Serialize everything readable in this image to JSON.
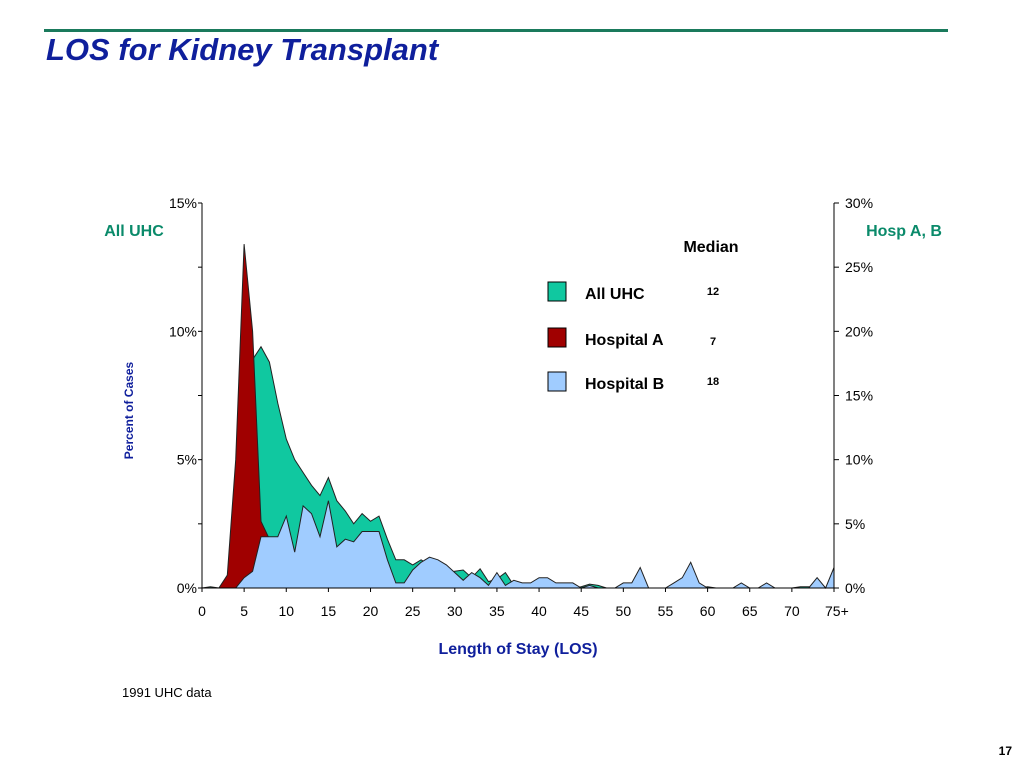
{
  "slide": {
    "title": "LOS for Kidney Transplant",
    "footnote": "1991 UHC data",
    "page_number": "17"
  },
  "colors": {
    "title": "#0f1f9c",
    "rule": "#1a7a5c",
    "axis_label_green": "#0a8a6a",
    "axis_label_blue": "#0f1f9c",
    "all_uhc": "#10c8a0",
    "hospital_a": "#a00000",
    "hospital_b": "#a0ccff"
  },
  "chart_data": {
    "type": "area",
    "title": "",
    "xlabel": "Length of Stay (LOS)",
    "ylabel": "Percent of Cases",
    "left_axis_title": "All UHC",
    "right_axis_title": "Hosp A, B",
    "xlim": [
      0,
      75
    ],
    "ylim_left": [
      0,
      15
    ],
    "ylim_right": [
      0,
      30
    ],
    "x_tick_labels": [
      "0",
      "5",
      "10",
      "15",
      "20",
      "25",
      "30",
      "35",
      "40",
      "45",
      "50",
      "55",
      "60",
      "65",
      "70",
      "75+"
    ],
    "y_left_tick_labels": [
      "0%",
      "5%",
      "10%",
      "15%"
    ],
    "y_right_tick_labels": [
      "0%",
      "5%",
      "10%",
      "15%",
      "20%",
      "25%",
      "30%"
    ],
    "legend": {
      "header": "Median",
      "placement": "top-right",
      "entries": [
        {
          "name": "All UHC",
          "median": "12",
          "color_key": "all_uhc"
        },
        {
          "name": "Hospital A",
          "median": "7",
          "color_key": "hospital_a"
        },
        {
          "name": "Hospital B",
          "median": "18",
          "color_key": "hospital_b"
        }
      ]
    },
    "series": [
      {
        "name": "All UHC",
        "axis": "left",
        "x": [
          0,
          1,
          2,
          3,
          4,
          5,
          6,
          7,
          8,
          9,
          10,
          11,
          12,
          13,
          14,
          15,
          16,
          17,
          18,
          19,
          20,
          21,
          22,
          23,
          24,
          25,
          26,
          27,
          28,
          29,
          30,
          31,
          32,
          33,
          34,
          35,
          36,
          37,
          38,
          39,
          40,
          41,
          42,
          43,
          44,
          45,
          46,
          47,
          48,
          49,
          50,
          51,
          52,
          53,
          54,
          55,
          56,
          57,
          58,
          59,
          60,
          61,
          62,
          63,
          64,
          65,
          66,
          67,
          68,
          69,
          70,
          71,
          72,
          73,
          74,
          75
        ],
        "values": [
          0,
          0.05,
          0,
          0.1,
          2.0,
          6.0,
          8.9,
          9.4,
          8.8,
          7.2,
          5.8,
          5.0,
          4.5,
          4.0,
          3.6,
          4.3,
          3.4,
          3.0,
          2.5,
          2.9,
          2.6,
          2.8,
          1.9,
          1.1,
          1.1,
          0.9,
          1.1,
          0.9,
          0.8,
          0.6,
          0.65,
          0.7,
          0.4,
          0.75,
          0.25,
          0.35,
          0.6,
          0.1,
          0,
          0,
          0.05,
          0.05,
          0.05,
          0,
          0,
          0.05,
          0.15,
          0.1,
          0,
          0,
          0,
          0,
          0,
          0,
          0,
          0,
          0,
          0,
          0,
          0,
          0.05,
          0,
          0,
          0,
          0,
          0,
          0,
          0.05,
          0,
          0,
          0,
          0.05,
          0.05,
          0,
          0,
          0
        ]
      },
      {
        "name": "Hospital A",
        "axis": "right",
        "x": [
          0,
          1,
          2,
          3,
          4,
          5,
          6,
          7,
          8,
          9,
          10
        ],
        "values": [
          0,
          0,
          0,
          1.0,
          10.0,
          26.8,
          20.0,
          5.2,
          3.8,
          0,
          0
        ]
      },
      {
        "name": "Hospital B",
        "axis": "right",
        "x": [
          0,
          1,
          2,
          3,
          4,
          5,
          6,
          7,
          8,
          9,
          10,
          11,
          12,
          13,
          14,
          15,
          16,
          17,
          18,
          19,
          20,
          21,
          22,
          23,
          24,
          25,
          26,
          27,
          28,
          29,
          30,
          31,
          32,
          33,
          34,
          35,
          36,
          37,
          38,
          39,
          40,
          41,
          42,
          43,
          44,
          45,
          46,
          47,
          48,
          49,
          50,
          51,
          52,
          53,
          54,
          55,
          56,
          57,
          58,
          59,
          60,
          61,
          62,
          63,
          64,
          65,
          66,
          67,
          68,
          69,
          70,
          71,
          72,
          73,
          74,
          75
        ],
        "values": [
          0,
          0,
          0,
          0,
          0,
          0.8,
          1.3,
          4.0,
          4.0,
          4.0,
          5.6,
          2.8,
          6.4,
          5.8,
          4.0,
          6.8,
          3.2,
          3.8,
          3.6,
          4.4,
          4.4,
          4.4,
          2.2,
          0.4,
          0.4,
          1.4,
          2.0,
          2.4,
          2.2,
          1.8,
          1.2,
          0.6,
          1.2,
          0.8,
          0.2,
          1.2,
          0.2,
          0.6,
          0.4,
          0.4,
          0.8,
          0.8,
          0.4,
          0.4,
          0.4,
          0,
          0.2,
          0,
          0,
          0,
          0.4,
          0.4,
          1.6,
          0,
          0,
          0,
          0.4,
          0.8,
          2.0,
          0.4,
          0,
          0,
          0,
          0,
          0.4,
          0,
          0,
          0.4,
          0,
          0,
          0,
          0,
          0,
          0.8,
          0,
          1.6
        ]
      }
    ]
  }
}
